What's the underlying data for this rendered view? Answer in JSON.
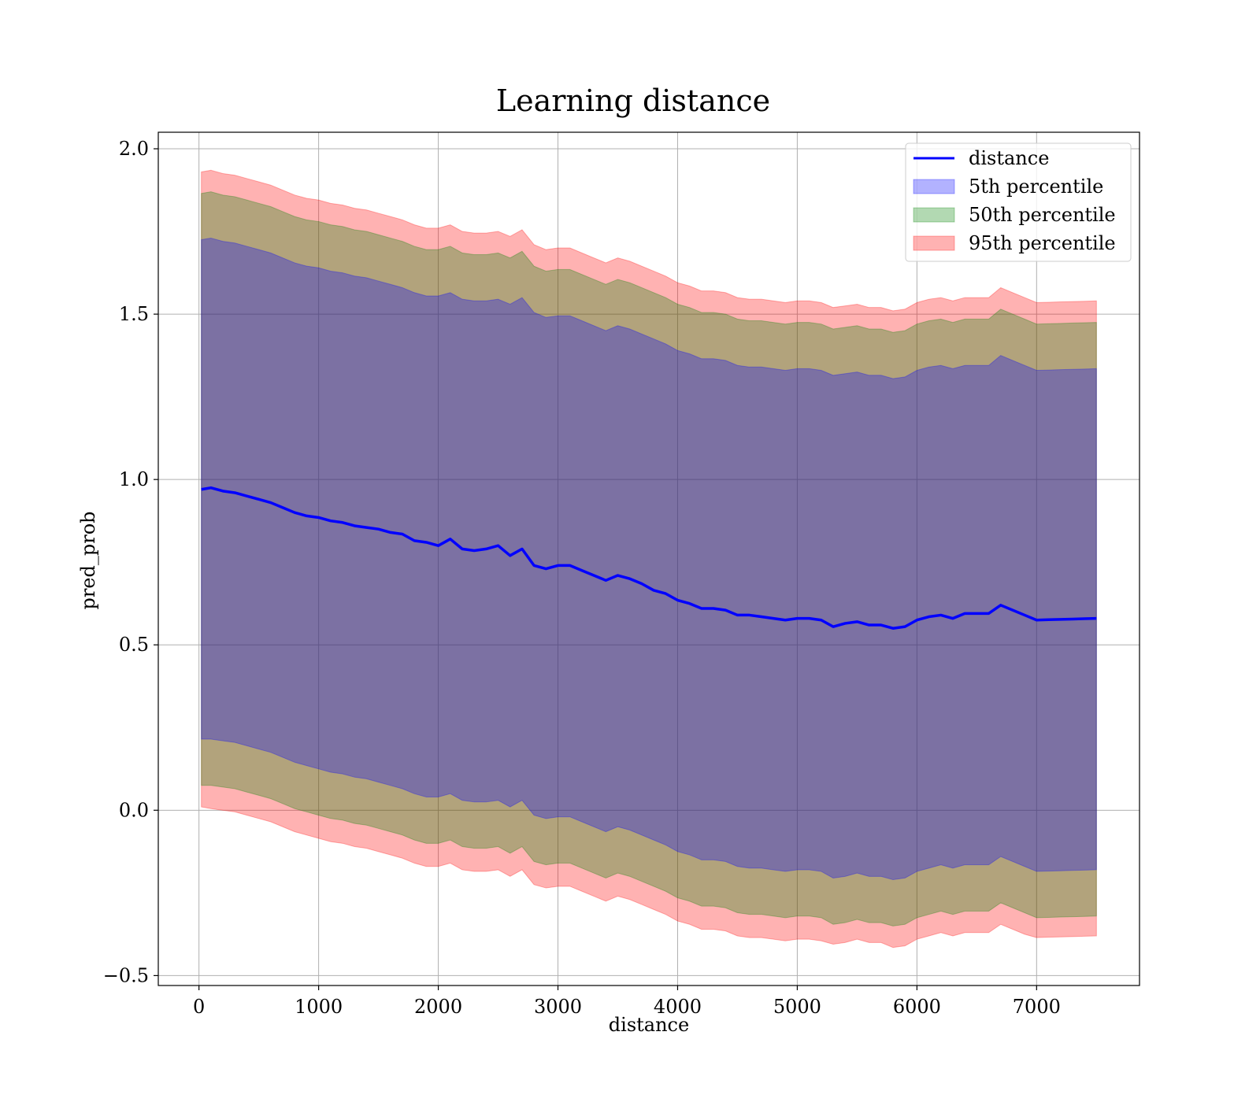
{
  "chart_data": {
    "type": "area",
    "title": "Learning distance",
    "xlabel": "distance",
    "ylabel": "pred_prob",
    "xlim": [
      -340,
      7860
    ],
    "ylim": [
      -0.53,
      2.05
    ],
    "x_ticks": [
      0,
      1000,
      2000,
      3000,
      4000,
      5000,
      6000,
      7000
    ],
    "x_tick_labels": [
      "0",
      "1000",
      "2000",
      "3000",
      "4000",
      "5000",
      "6000",
      "7000"
    ],
    "y_ticks": [
      -0.5,
      0.0,
      0.5,
      1.0,
      1.5,
      2.0
    ],
    "y_tick_labels": [
      "−0.5",
      "0.0",
      "0.5",
      "1.0",
      "1.5",
      "2.0"
    ],
    "grid": true,
    "legend_position": "top-right",
    "colors": {
      "line": "#0000ff",
      "p5": "#0000ff",
      "p50": "#008000",
      "p95": "#ff0000"
    },
    "x": [
      20,
      100,
      200,
      300,
      400,
      500,
      600,
      700,
      800,
      900,
      1000,
      1100,
      1200,
      1300,
      1400,
      1500,
      1600,
      1700,
      1800,
      1900,
      2000,
      2100,
      2200,
      2300,
      2400,
      2500,
      2600,
      2700,
      2800,
      2900,
      3000,
      3100,
      3200,
      3300,
      3400,
      3500,
      3600,
      3700,
      3800,
      3900,
      4000,
      4100,
      4200,
      4300,
      4400,
      4500,
      4600,
      4700,
      4800,
      4900,
      5000,
      5100,
      5200,
      5300,
      5400,
      5500,
      5600,
      5700,
      5800,
      5900,
      6000,
      6100,
      6200,
      6300,
      6400,
      6500,
      6600,
      6700,
      6800,
      6900,
      7000,
      7100,
      7200,
      7300,
      7400,
      7500
    ],
    "series": [
      {
        "name": "distance",
        "kind": "line",
        "values": [
          0.97,
          0.975,
          0.965,
          0.96,
          0.95,
          0.94,
          0.93,
          0.915,
          0.9,
          0.89,
          0.885,
          0.875,
          0.87,
          0.86,
          0.855,
          0.85,
          0.84,
          0.835,
          0.815,
          0.81,
          0.8,
          0.82,
          0.79,
          0.785,
          0.79,
          0.8,
          0.77,
          0.79,
          0.74,
          0.73,
          0.74,
          0.74,
          0.725,
          0.71,
          0.695,
          0.71,
          0.7,
          0.685,
          0.665,
          0.655,
          0.635,
          0.625,
          0.61,
          0.61,
          0.605,
          0.59,
          0.59,
          0.585,
          0.58,
          0.575,
          0.58,
          0.58,
          0.575,
          0.555,
          0.565,
          0.57,
          0.56,
          0.56,
          0.55,
          0.555,
          0.575,
          0.585,
          0.59,
          0.58,
          0.595,
          0.595,
          0.595,
          0.62,
          0.605,
          0.59,
          0.575,
          0.576,
          0.577,
          0.578,
          0.579,
          0.58
        ]
      },
      {
        "name": "5th percentile",
        "kind": "band",
        "lower": [
          0.215,
          0.215,
          0.21,
          0.205,
          0.195,
          0.185,
          0.175,
          0.16,
          0.145,
          0.135,
          0.125,
          0.115,
          0.11,
          0.1,
          0.095,
          0.085,
          0.075,
          0.065,
          0.05,
          0.04,
          0.04,
          0.05,
          0.03,
          0.025,
          0.025,
          0.03,
          0.01,
          0.03,
          -0.015,
          -0.025,
          -0.02,
          -0.02,
          -0.035,
          -0.05,
          -0.065,
          -0.05,
          -0.06,
          -0.075,
          -0.09,
          -0.105,
          -0.125,
          -0.135,
          -0.15,
          -0.15,
          -0.155,
          -0.17,
          -0.175,
          -0.175,
          -0.18,
          -0.185,
          -0.18,
          -0.18,
          -0.185,
          -0.205,
          -0.2,
          -0.19,
          -0.2,
          -0.2,
          -0.21,
          -0.205,
          -0.185,
          -0.175,
          -0.165,
          -0.175,
          -0.165,
          -0.165,
          -0.165,
          -0.14,
          -0.155,
          -0.17,
          -0.185,
          -0.184,
          -0.183,
          -0.182,
          -0.181,
          -0.18
        ],
        "upper": [
          1.725,
          1.73,
          1.72,
          1.715,
          1.705,
          1.695,
          1.685,
          1.67,
          1.655,
          1.645,
          1.64,
          1.63,
          1.625,
          1.615,
          1.61,
          1.6,
          1.59,
          1.58,
          1.565,
          1.555,
          1.555,
          1.565,
          1.545,
          1.54,
          1.54,
          1.545,
          1.53,
          1.55,
          1.505,
          1.49,
          1.495,
          1.495,
          1.48,
          1.465,
          1.45,
          1.465,
          1.455,
          1.44,
          1.425,
          1.41,
          1.39,
          1.38,
          1.365,
          1.365,
          1.36,
          1.345,
          1.34,
          1.34,
          1.335,
          1.33,
          1.335,
          1.335,
          1.33,
          1.315,
          1.32,
          1.325,
          1.315,
          1.315,
          1.305,
          1.31,
          1.33,
          1.34,
          1.345,
          1.335,
          1.345,
          1.345,
          1.345,
          1.375,
          1.36,
          1.345,
          1.33,
          1.331,
          1.332,
          1.333,
          1.334,
          1.335
        ]
      },
      {
        "name": "50th percentile",
        "kind": "band",
        "lower": [
          0.075,
          0.075,
          0.07,
          0.065,
          0.055,
          0.045,
          0.035,
          0.02,
          0.005,
          -0.005,
          -0.015,
          -0.025,
          -0.03,
          -0.04,
          -0.045,
          -0.055,
          -0.065,
          -0.075,
          -0.09,
          -0.1,
          -0.1,
          -0.09,
          -0.11,
          -0.115,
          -0.115,
          -0.11,
          -0.13,
          -0.11,
          -0.155,
          -0.165,
          -0.16,
          -0.16,
          -0.175,
          -0.19,
          -0.205,
          -0.19,
          -0.2,
          -0.215,
          -0.23,
          -0.245,
          -0.265,
          -0.275,
          -0.29,
          -0.29,
          -0.295,
          -0.31,
          -0.315,
          -0.315,
          -0.32,
          -0.325,
          -0.32,
          -0.32,
          -0.325,
          -0.345,
          -0.34,
          -0.33,
          -0.34,
          -0.34,
          -0.35,
          -0.345,
          -0.325,
          -0.315,
          -0.305,
          -0.315,
          -0.305,
          -0.305,
          -0.305,
          -0.28,
          -0.295,
          -0.31,
          -0.325,
          -0.324,
          -0.323,
          -0.322,
          -0.321,
          -0.32
        ],
        "upper": [
          1.865,
          1.87,
          1.86,
          1.855,
          1.845,
          1.835,
          1.825,
          1.81,
          1.795,
          1.785,
          1.78,
          1.77,
          1.765,
          1.755,
          1.75,
          1.74,
          1.73,
          1.72,
          1.705,
          1.695,
          1.695,
          1.705,
          1.685,
          1.68,
          1.68,
          1.685,
          1.67,
          1.69,
          1.645,
          1.63,
          1.635,
          1.635,
          1.62,
          1.605,
          1.59,
          1.605,
          1.595,
          1.58,
          1.565,
          1.55,
          1.53,
          1.52,
          1.505,
          1.505,
          1.5,
          1.485,
          1.48,
          1.48,
          1.475,
          1.47,
          1.475,
          1.475,
          1.47,
          1.455,
          1.46,
          1.465,
          1.455,
          1.455,
          1.445,
          1.45,
          1.47,
          1.48,
          1.485,
          1.475,
          1.485,
          1.485,
          1.485,
          1.515,
          1.5,
          1.485,
          1.47,
          1.471,
          1.472,
          1.473,
          1.474,
          1.475
        ]
      },
      {
        "name": "95th percentile",
        "kind": "band",
        "lower": [
          0.01,
          0.005,
          0.0,
          -0.005,
          -0.015,
          -0.025,
          -0.035,
          -0.05,
          -0.065,
          -0.075,
          -0.085,
          -0.095,
          -0.1,
          -0.11,
          -0.115,
          -0.125,
          -0.135,
          -0.145,
          -0.16,
          -0.17,
          -0.17,
          -0.16,
          -0.18,
          -0.185,
          -0.185,
          -0.18,
          -0.2,
          -0.18,
          -0.225,
          -0.235,
          -0.23,
          -0.23,
          -0.245,
          -0.26,
          -0.275,
          -0.26,
          -0.27,
          -0.285,
          -0.3,
          -0.315,
          -0.335,
          -0.345,
          -0.36,
          -0.36,
          -0.365,
          -0.38,
          -0.385,
          -0.385,
          -0.39,
          -0.395,
          -0.39,
          -0.39,
          -0.395,
          -0.405,
          -0.4,
          -0.39,
          -0.4,
          -0.4,
          -0.415,
          -0.41,
          -0.39,
          -0.38,
          -0.37,
          -0.38,
          -0.37,
          -0.37,
          -0.37,
          -0.345,
          -0.36,
          -0.375,
          -0.385,
          -0.384,
          -0.383,
          -0.382,
          -0.381,
          -0.38
        ],
        "upper": [
          1.93,
          1.935,
          1.925,
          1.92,
          1.91,
          1.9,
          1.89,
          1.875,
          1.86,
          1.85,
          1.845,
          1.835,
          1.83,
          1.82,
          1.815,
          1.805,
          1.795,
          1.785,
          1.77,
          1.76,
          1.76,
          1.77,
          1.75,
          1.745,
          1.745,
          1.75,
          1.735,
          1.755,
          1.71,
          1.695,
          1.7,
          1.7,
          1.685,
          1.67,
          1.655,
          1.67,
          1.66,
          1.645,
          1.63,
          1.615,
          1.595,
          1.585,
          1.57,
          1.57,
          1.565,
          1.55,
          1.545,
          1.545,
          1.54,
          1.535,
          1.54,
          1.54,
          1.535,
          1.52,
          1.525,
          1.53,
          1.52,
          1.52,
          1.51,
          1.515,
          1.535,
          1.545,
          1.55,
          1.54,
          1.55,
          1.55,
          1.55,
          1.58,
          1.565,
          1.55,
          1.535,
          1.536,
          1.537,
          1.538,
          1.539,
          1.54
        ]
      }
    ]
  }
}
